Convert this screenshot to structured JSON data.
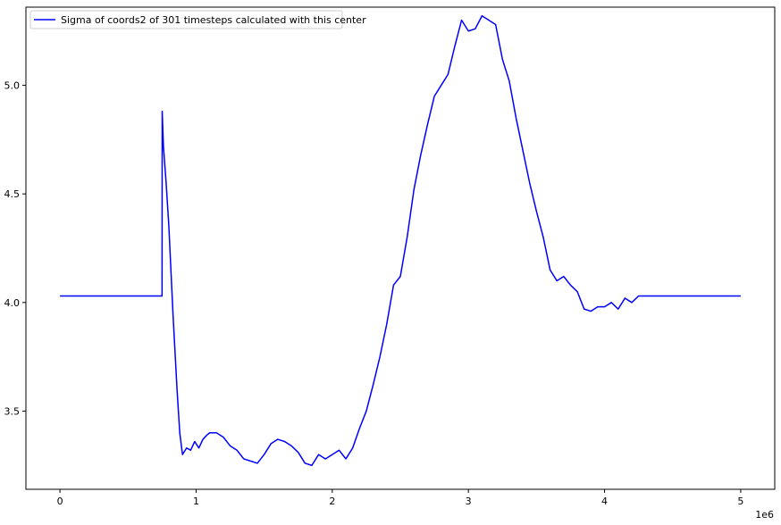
{
  "chart_data": {
    "type": "line",
    "title": "",
    "xlabel": "",
    "ylabel": "",
    "x_offset_label": "1e6",
    "xlim": [
      -250000,
      5250000
    ],
    "ylim": [
      3.14,
      5.36
    ],
    "xticks": [
      0,
      1000000,
      2000000,
      3000000,
      4000000,
      5000000
    ],
    "xtick_labels": [
      "0",
      "1",
      "2",
      "3",
      "4",
      "5"
    ],
    "yticks": [
      3.5,
      4.0,
      4.5,
      5.0
    ],
    "ytick_labels": [
      "3.5",
      "4.0",
      "4.5",
      "5.0"
    ],
    "grid": false,
    "legend": "top-left",
    "series": [
      {
        "name": "Sigma of coords2 of 301 timesteps calculated with this center",
        "color": "#0000ff",
        "x": [
          0,
          750000,
          751000,
          760000,
          780000,
          800000,
          830000,
          860000,
          880000,
          900000,
          930000,
          960000,
          990000,
          1020000,
          1050000,
          1080000,
          1100000,
          1150000,
          1200000,
          1250000,
          1300000,
          1350000,
          1400000,
          1450000,
          1500000,
          1550000,
          1600000,
          1650000,
          1700000,
          1750000,
          1800000,
          1850000,
          1900000,
          1950000,
          2000000,
          2050000,
          2100000,
          2150000,
          2200000,
          2250000,
          2300000,
          2350000,
          2400000,
          2450000,
          2500000,
          2550000,
          2600000,
          2650000,
          2700000,
          2750000,
          2800000,
          2850000,
          2900000,
          2950000,
          3000000,
          3050000,
          3100000,
          3150000,
          3200000,
          3250000,
          3300000,
          3350000,
          3400000,
          3450000,
          3500000,
          3550000,
          3600000,
          3650000,
          3700000,
          3750000,
          3800000,
          3850000,
          3900000,
          3950000,
          4000000,
          4050000,
          4100000,
          4150000,
          4200000,
          4250000,
          4300000,
          5000000
        ],
        "y": [
          4.03,
          4.03,
          4.88,
          4.72,
          4.55,
          4.35,
          3.95,
          3.6,
          3.4,
          3.3,
          3.33,
          3.32,
          3.36,
          3.33,
          3.37,
          3.39,
          3.4,
          3.4,
          3.38,
          3.34,
          3.32,
          3.28,
          3.27,
          3.26,
          3.3,
          3.35,
          3.37,
          3.36,
          3.34,
          3.31,
          3.26,
          3.25,
          3.3,
          3.28,
          3.3,
          3.32,
          3.28,
          3.33,
          3.42,
          3.5,
          3.62,
          3.75,
          3.9,
          4.08,
          4.12,
          4.3,
          4.52,
          4.68,
          4.82,
          4.95,
          5.0,
          5.05,
          5.18,
          5.3,
          5.25,
          5.26,
          5.32,
          5.3,
          5.28,
          5.12,
          5.02,
          4.85,
          4.7,
          4.55,
          4.42,
          4.3,
          4.15,
          4.1,
          4.12,
          4.08,
          4.05,
          3.97,
          3.96,
          3.98,
          3.98,
          4.0,
          3.97,
          4.02,
          4.0,
          4.03,
          4.03,
          4.03
        ]
      }
    ]
  }
}
